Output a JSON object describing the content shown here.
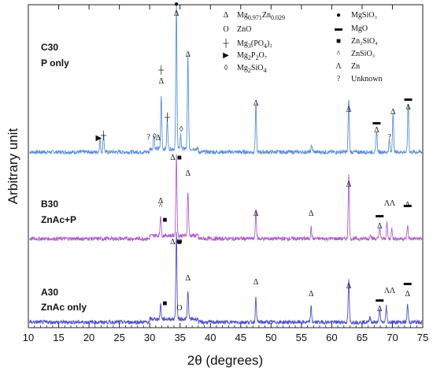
{
  "chart_data": {
    "type": "line",
    "xlabel": "2θ (degrees)",
    "ylabel": "Arbitrary unit",
    "xlim": [
      10,
      75
    ],
    "x_ticks": [
      10,
      15,
      20,
      25,
      30,
      35,
      40,
      45,
      50,
      55,
      60,
      65,
      70,
      75
    ],
    "series": [
      {
        "name_lines": [
          "C30",
          "P only"
        ],
        "color": "#5a8fd6",
        "peaks": [
          {
            "x": 21.8,
            "h": 0.1
          },
          {
            "x": 22.4,
            "h": 0.12
          },
          {
            "x": 30.7,
            "h": 0.1
          },
          {
            "x": 31.9,
            "h": 0.36
          },
          {
            "x": 32.9,
            "h": 0.2
          },
          {
            "x": 34.4,
            "h": 1.0
          },
          {
            "x": 35.1,
            "h": 0.1
          },
          {
            "x": 36.3,
            "h": 0.64
          },
          {
            "x": 47.5,
            "h": 0.34
          },
          {
            "x": 56.7,
            "h": 0.05
          },
          {
            "x": 62.8,
            "h": 0.37
          },
          {
            "x": 67.4,
            "h": 0.15
          },
          {
            "x": 69.5,
            "h": 0.08
          },
          {
            "x": 70.1,
            "h": 0.27
          },
          {
            "x": 72.6,
            "h": 0.33
          }
        ]
      },
      {
        "name_lines": [
          "B30",
          "ZnAc+P"
        ],
        "color": "#b05ec8",
        "peaks": [
          {
            "x": 31.8,
            "h": 0.22
          },
          {
            "x": 34.4,
            "h": 0.85
          },
          {
            "x": 36.3,
            "h": 0.47
          },
          {
            "x": 47.5,
            "h": 0.31
          },
          {
            "x": 56.6,
            "h": 0.12
          },
          {
            "x": 62.8,
            "h": 0.68
          },
          {
            "x": 66.4,
            "h": 0.06
          },
          {
            "x": 67.9,
            "h": 0.12
          },
          {
            "x": 69.1,
            "h": 0.16
          },
          {
            "x": 69.9,
            "h": 0.11
          },
          {
            "x": 72.5,
            "h": 0.14
          }
        ]
      },
      {
        "name_lines": [
          "A30",
          "ZnAc only"
        ],
        "color": "#4e50c8",
        "peaks": [
          {
            "x": 31.8,
            "h": 0.17
          },
          {
            "x": 34.4,
            "h": 1.0
          },
          {
            "x": 36.3,
            "h": 0.33
          },
          {
            "x": 47.5,
            "h": 0.29
          },
          {
            "x": 56.6,
            "h": 0.18
          },
          {
            "x": 62.8,
            "h": 0.48
          },
          {
            "x": 66.3,
            "h": 0.07
          },
          {
            "x": 67.9,
            "h": 0.16
          },
          {
            "x": 69.0,
            "h": 0.19
          },
          {
            "x": 72.5,
            "h": 0.21
          }
        ]
      }
    ],
    "markers": [
      {
        "series": 0,
        "x": 34.4,
        "label": "●"
      },
      {
        "series": 0,
        "x": 34.4,
        "label": "Δ"
      },
      {
        "series": 0,
        "x": 31.9,
        "label": "Δ"
      },
      {
        "series": 0,
        "x": 31.9,
        "label": "┼"
      },
      {
        "series": 0,
        "x": 32.9,
        "label": "┼"
      },
      {
        "series": 0,
        "x": 36.3,
        "label": "Δ"
      },
      {
        "series": 0,
        "x": 47.5,
        "label": "Δ"
      },
      {
        "series": 0,
        "x": 62.8,
        "label": "Δ"
      },
      {
        "series": 0,
        "x": 67.4,
        "label": "Δ"
      },
      {
        "series": 0,
        "x": 67.4,
        "label": "▬"
      },
      {
        "series": 0,
        "x": 69.5,
        "label": "?"
      },
      {
        "series": 0,
        "x": 70.1,
        "label": "Δ"
      },
      {
        "series": 0,
        "x": 72.6,
        "label": "Δ"
      },
      {
        "series": 0,
        "x": 72.6,
        "label": "▬"
      },
      {
        "series": 0,
        "x": 21.6,
        "label": "▶"
      },
      {
        "series": 0,
        "x": 22.4,
        "label": "┼"
      },
      {
        "series": 0,
        "x": 29.8,
        "label": "?"
      },
      {
        "series": 0,
        "x": 30.8,
        "label": "◊"
      },
      {
        "series": 0,
        "x": 31.4,
        "label": "Δ"
      },
      {
        "series": 0,
        "x": 35.2,
        "label": "◊"
      },
      {
        "series": 1,
        "x": 33.8,
        "label": "Δ"
      },
      {
        "series": 1,
        "x": 34.9,
        "label": "■"
      },
      {
        "series": 1,
        "x": 36.3,
        "label": "Δ"
      },
      {
        "series": 1,
        "x": 31.8,
        "label": "Δ"
      },
      {
        "series": 1,
        "x": 31.8,
        "label": "^"
      },
      {
        "series": 1,
        "x": 32.5,
        "label": "■"
      },
      {
        "series": 1,
        "x": 34.9,
        "label": "O"
      },
      {
        "series": 1,
        "x": 47.5,
        "label": "Δ"
      },
      {
        "series": 1,
        "x": 56.6,
        "label": "Δ"
      },
      {
        "series": 1,
        "x": 62.8,
        "label": "Δ"
      },
      {
        "series": 1,
        "x": 67.9,
        "label": "▬"
      },
      {
        "series": 1,
        "x": 67.9,
        "label": "Δ"
      },
      {
        "series": 1,
        "x": 69.1,
        "label": "Λ"
      },
      {
        "series": 1,
        "x": 70.0,
        "label": "Λ"
      },
      {
        "series": 1,
        "x": 72.5,
        "label": "▬"
      },
      {
        "series": 1,
        "x": 72.5,
        "label": "Δ"
      },
      {
        "series": 2,
        "x": 33.8,
        "label": "Δ"
      },
      {
        "series": 2,
        "x": 34.9,
        "label": "■"
      },
      {
        "series": 2,
        "x": 36.3,
        "label": "Δ"
      },
      {
        "series": 2,
        "x": 32.5,
        "label": "■"
      },
      {
        "series": 2,
        "x": 34.9,
        "label": "O"
      },
      {
        "series": 2,
        "x": 47.5,
        "label": "Δ"
      },
      {
        "series": 2,
        "x": 56.6,
        "label": "Δ"
      },
      {
        "series": 2,
        "x": 62.8,
        "label": "Δ"
      },
      {
        "series": 2,
        "x": 67.9,
        "label": "▬"
      },
      {
        "series": 2,
        "x": 67.9,
        "label": "Δ"
      },
      {
        "series": 2,
        "x": 69.1,
        "label": "Λ"
      },
      {
        "series": 2,
        "x": 70.0,
        "label": "Λ"
      },
      {
        "series": 2,
        "x": 72.5,
        "label": "▬"
      },
      {
        "series": 2,
        "x": 72.5,
        "label": "Δ"
      }
    ],
    "legend": {
      "placement": "top-right",
      "col1": [
        {
          "symbol": "Δ",
          "base": "Mg",
          "sub1": "0.971",
          "mid": "Zn",
          "sub2": "0.029",
          "end": ""
        },
        {
          "symbol": "O",
          "base": "ZnO",
          "sub1": "",
          "mid": "",
          "sub2": "",
          "end": ""
        },
        {
          "symbol": "┼",
          "base": "Mg",
          "sub1": "3",
          "mid": "(PO",
          "sub2": "4",
          "end": ")₂"
        },
        {
          "symbol": "▶",
          "base": "Mg",
          "sub1": "2",
          "mid": "P",
          "sub2": "2",
          "end": "O₇"
        },
        {
          "symbol": "◊",
          "base": "Mg",
          "sub1": "2",
          "mid": "SiO",
          "sub2": "4",
          "end": ""
        }
      ],
      "col2": [
        {
          "symbol": "●",
          "text": "MgSiO₃"
        },
        {
          "symbol": "▬",
          "text": "MgO"
        },
        {
          "symbol": "■",
          "text": "Zn₂SiO₄"
        },
        {
          "symbol": "^",
          "text": "ZnSiO₃"
        },
        {
          "symbol": "Λ",
          "text": "Zn"
        },
        {
          "symbol": "?",
          "text": "Unknown"
        }
      ]
    }
  }
}
